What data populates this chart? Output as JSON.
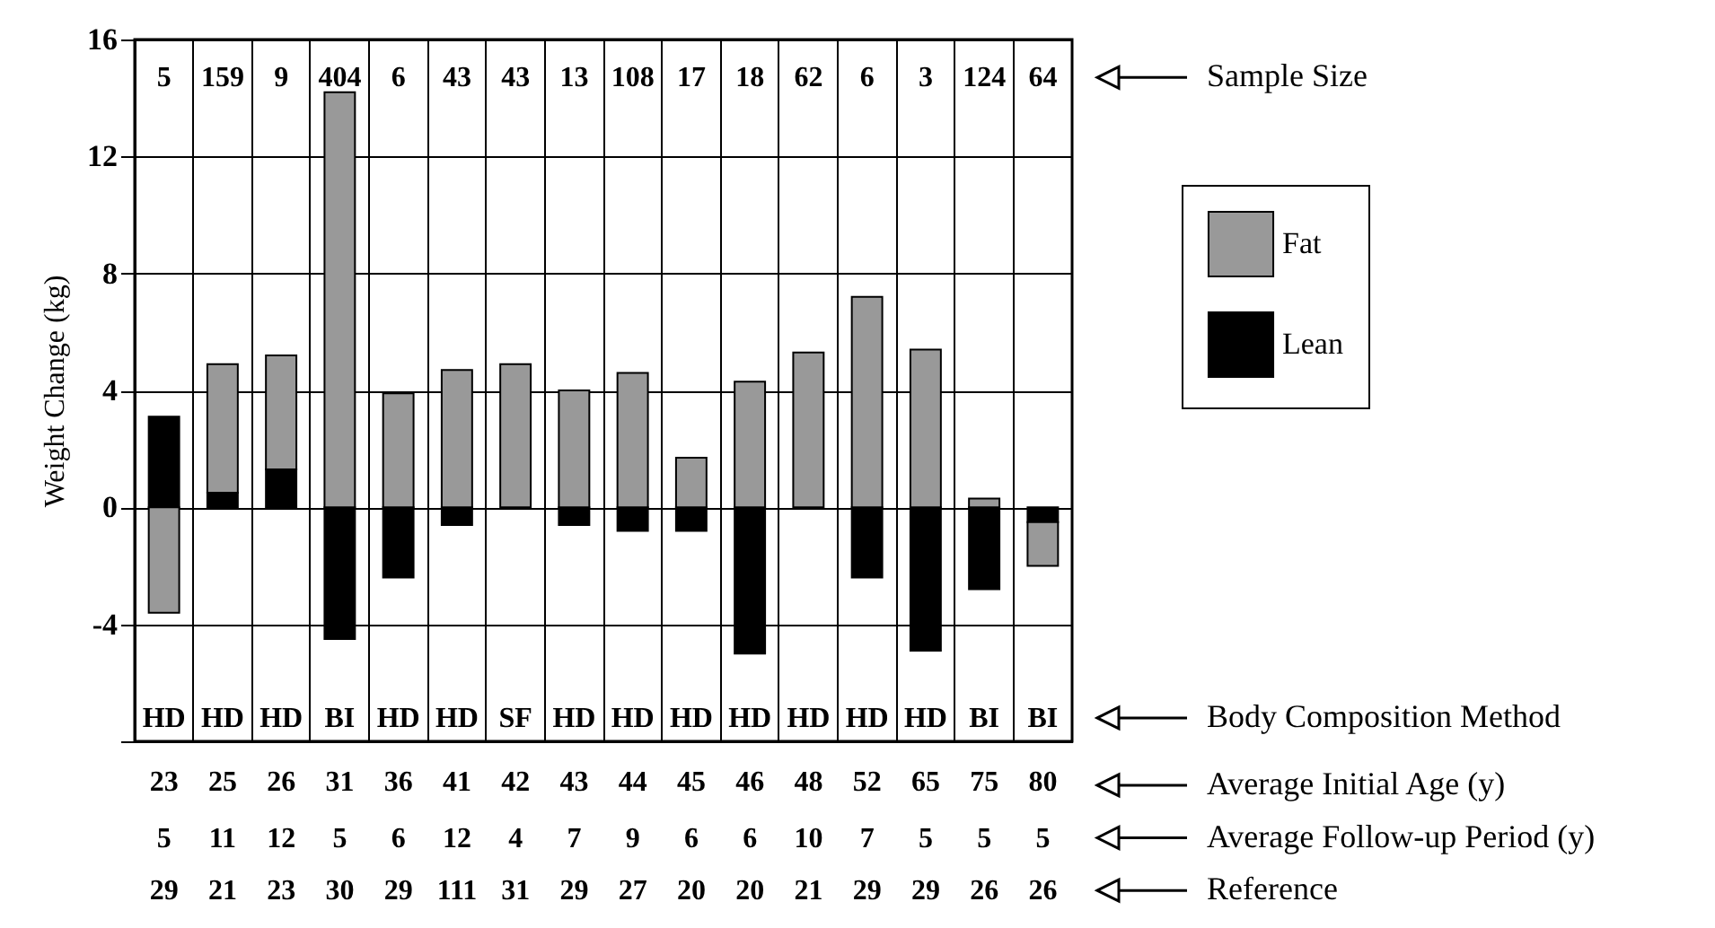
{
  "chart_data": {
    "type": "bar",
    "stacked": true,
    "ylabel": "Weight Change (kg)",
    "categories": [
      "23",
      "25",
      "26",
      "31",
      "36",
      "41",
      "42",
      "43",
      "44",
      "45",
      "46",
      "48",
      "52",
      "65",
      "75",
      "80"
    ],
    "series": [
      {
        "name": "Lean",
        "color": "#000000",
        "values": [
          3.1,
          0.5,
          1.3,
          -4.5,
          -2.4,
          -0.6,
          null,
          -0.6,
          -0.8,
          -0.8,
          -5.0,
          null,
          -2.4,
          -4.9,
          -2.8,
          -0.5
        ]
      },
      {
        "name": "Fat",
        "color": "#999999",
        "values": [
          -3.6,
          4.4,
          3.9,
          14.2,
          3.9,
          4.7,
          4.9,
          4.0,
          4.6,
          1.7,
          4.3,
          5.3,
          7.2,
          5.4,
          0.3,
          -1.5
        ]
      }
    ],
    "ylim": [
      -8,
      16
    ],
    "yticks": [
      16,
      12,
      8,
      4,
      0,
      -4,
      {
        "value": -8,
        "label": null
      }
    ],
    "grid": true,
    "legend": "right",
    "annotations": [
      "5",
      "159",
      "9",
      "404",
      "6",
      "43",
      "43",
      "13",
      "108",
      "17",
      "18",
      "62",
      "6",
      "3",
      "124",
      "64",
      "Sample Size",
      "HD",
      "HD",
      "HD",
      "BI",
      "HD",
      "HD",
      "SF",
      "HD",
      "HD",
      "HD",
      "HD",
      "HD",
      "HD",
      "HD",
      "BI",
      "BI",
      "Body Composition Method",
      "Average Initial Age (y)",
      "5",
      "11",
      "12",
      "5",
      "6",
      "12",
      "4",
      "7",
      "9",
      "6",
      "6",
      "10",
      "7",
      "5",
      "5",
      "5",
      "Average Follow-up Period (y)",
      "29",
      "21",
      "23",
      "30",
      "29",
      "111",
      "31",
      "29",
      "27",
      "20",
      "20",
      "21",
      "29",
      "29",
      "26",
      "26",
      "Reference"
    ]
  }
}
